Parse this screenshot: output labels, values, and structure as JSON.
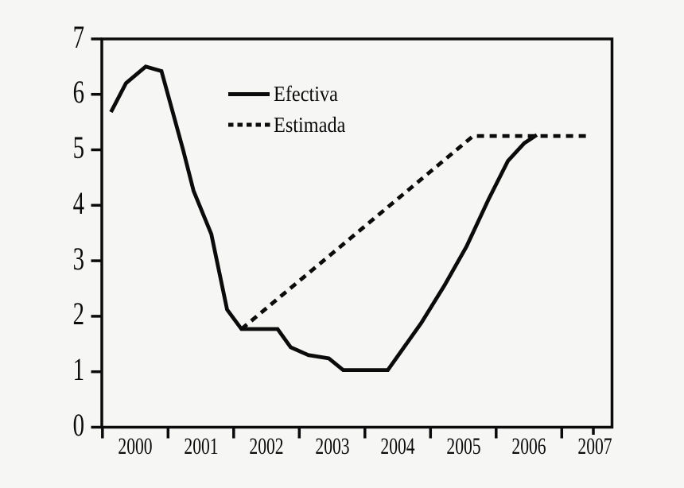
{
  "figure": {
    "background_color": "#f6f6f5",
    "ink_color": "#0b0b0b"
  },
  "chart_data": {
    "type": "line",
    "title": "",
    "xlabel": "",
    "ylabel": "",
    "xlim": [
      1999.5,
      2007.3
    ],
    "ylim": [
      0,
      7
    ],
    "grid": false,
    "x_tick_labels": [
      "2000",
      "2001",
      "2002",
      "2003",
      "2004",
      "2005",
      "2006",
      "2007"
    ],
    "y_tick_labels": [
      "0",
      "1",
      "2",
      "3",
      "4",
      "5",
      "6",
      "7"
    ],
    "legend_position": "inside-upper-left",
    "series": [
      {
        "name": "Efectiva",
        "line_style": "solid",
        "color": "#0b0b0b",
        "points": [
          [
            1999.63,
            5.68
          ],
          [
            1999.86,
            6.2
          ],
          [
            2000.16,
            6.5
          ],
          [
            2000.4,
            6.42
          ],
          [
            2000.73,
            5.0
          ],
          [
            2000.89,
            4.26
          ],
          [
            2001.16,
            3.48
          ],
          [
            2001.4,
            2.12
          ],
          [
            2001.62,
            1.77
          ],
          [
            2002.17,
            1.77
          ],
          [
            2002.37,
            1.44
          ],
          [
            2002.64,
            1.3
          ],
          [
            2002.95,
            1.24
          ],
          [
            2003.17,
            1.03
          ],
          [
            2003.85,
            1.03
          ],
          [
            2004.36,
            1.88
          ],
          [
            2004.71,
            2.55
          ],
          [
            2005.05,
            3.26
          ],
          [
            2005.39,
            4.12
          ],
          [
            2005.68,
            4.8
          ],
          [
            2005.93,
            5.12
          ],
          [
            2006.12,
            5.27
          ]
        ]
      },
      {
        "name": "Estimada",
        "line_style": "dashed",
        "color": "#0b0b0b",
        "points": [
          [
            2001.62,
            1.77
          ],
          [
            2005.15,
            5.25
          ],
          [
            2006.9,
            5.25
          ]
        ]
      }
    ]
  }
}
